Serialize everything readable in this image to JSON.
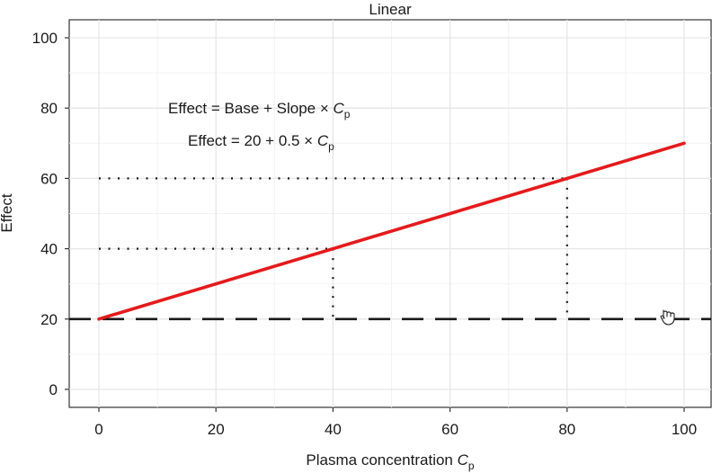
{
  "chart_data": {
    "type": "line",
    "title": "Linear",
    "xlabel_prefix": "Plasma concentration ",
    "xlabel_var": "C",
    "xlabel_sub": "p",
    "ylabel": "Effect",
    "xlim": [
      0,
      100
    ],
    "ylim": [
      0,
      100
    ],
    "x_ticks": [
      0,
      20,
      40,
      60,
      80,
      100
    ],
    "y_ticks": [
      0,
      20,
      40,
      60,
      80,
      100
    ],
    "x_tick_labels": [
      "0",
      "20",
      "40",
      "60",
      "80",
      "100"
    ],
    "y_tick_labels": [
      "0",
      "20",
      "40",
      "60",
      "80",
      "100"
    ],
    "grid": true,
    "series": [
      {
        "name": "Effect",
        "color": "#e41a1c",
        "x": [
          0,
          100
        ],
        "y": [
          20,
          70
        ]
      }
    ],
    "baseline": {
      "y": 20,
      "color": "#1a1a1a"
    },
    "reference_points": [
      {
        "x": 40,
        "y": 40
      },
      {
        "x": 80,
        "y": 60
      }
    ],
    "annotations": {
      "general_prefix": "Effect = Base + Slope × ",
      "general_var": "C",
      "general_sub": "p",
      "specific_prefix": "Effect = 20 + 0.5 × ",
      "specific_var": "C",
      "specific_sub": "p"
    }
  }
}
